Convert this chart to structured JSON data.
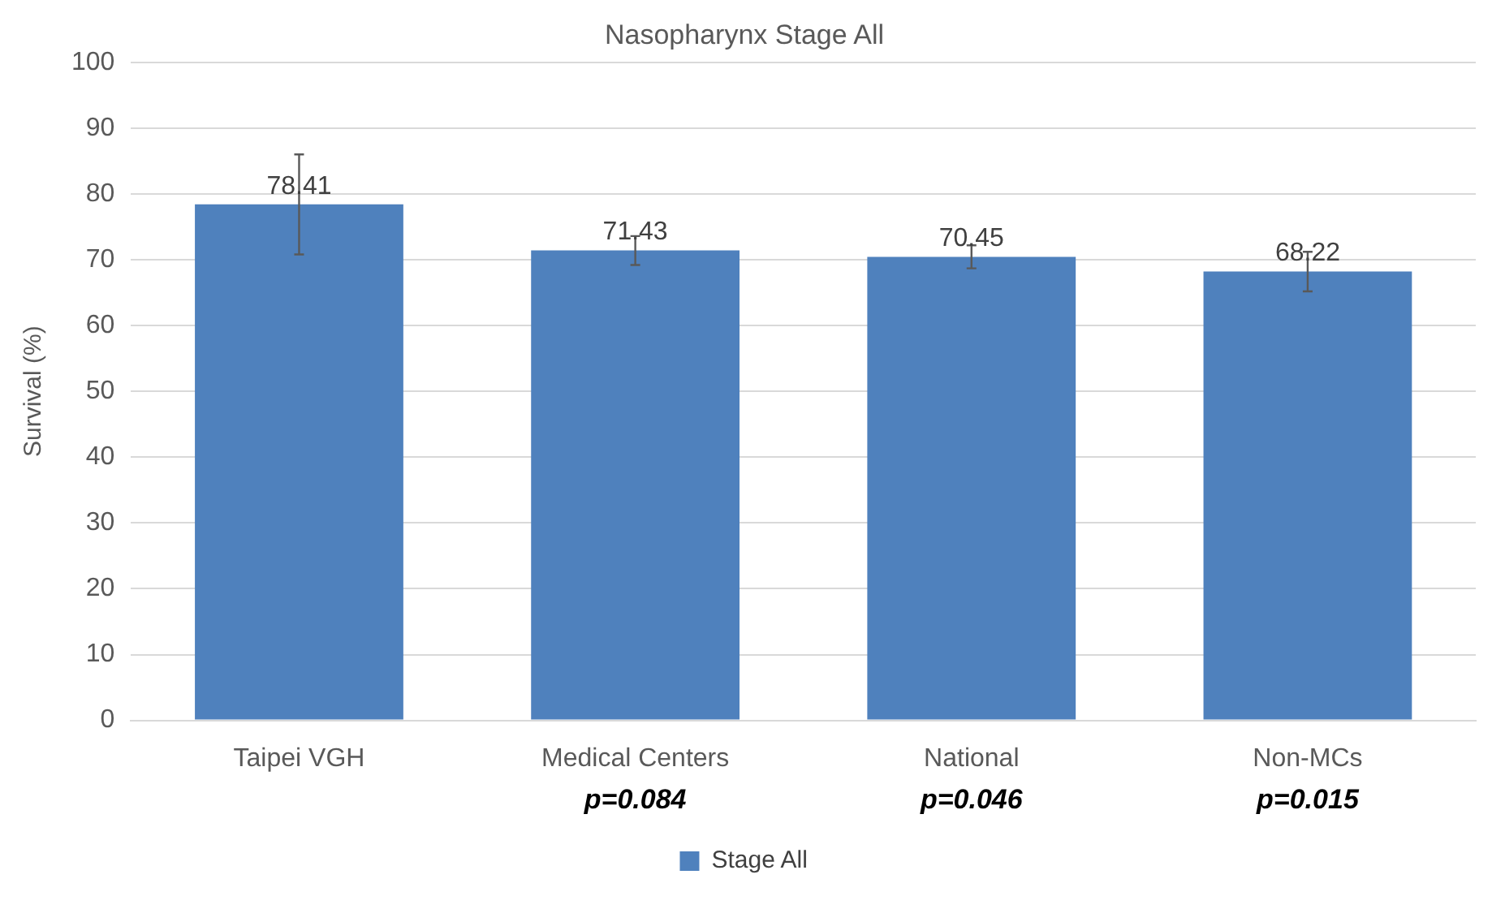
{
  "chart_data": {
    "type": "bar",
    "title": "Nasopharynx Stage All",
    "ylabel": "Survival (%)",
    "categories": [
      "Taipei VGH",
      "Medical Centers",
      "National",
      "Non-MCs"
    ],
    "series": [
      {
        "name": "Stage All",
        "color": "#4f81bd",
        "values": [
          78.41,
          71.43,
          70.45,
          68.22
        ],
        "errors": [
          [
            70.8,
            86.0
          ],
          [
            69.2,
            73.6
          ],
          [
            68.7,
            72.2
          ],
          [
            65.2,
            71.2
          ]
        ]
      }
    ],
    "ylim": [
      0,
      100
    ],
    "yticks": [
      0,
      10,
      20,
      30,
      40,
      50,
      60,
      70,
      80,
      90,
      100
    ],
    "grid": "y",
    "legend": "bottom",
    "data_labels": true,
    "annotations": [
      "p=0.084",
      "p=0.046",
      "p=0.015"
    ]
  }
}
